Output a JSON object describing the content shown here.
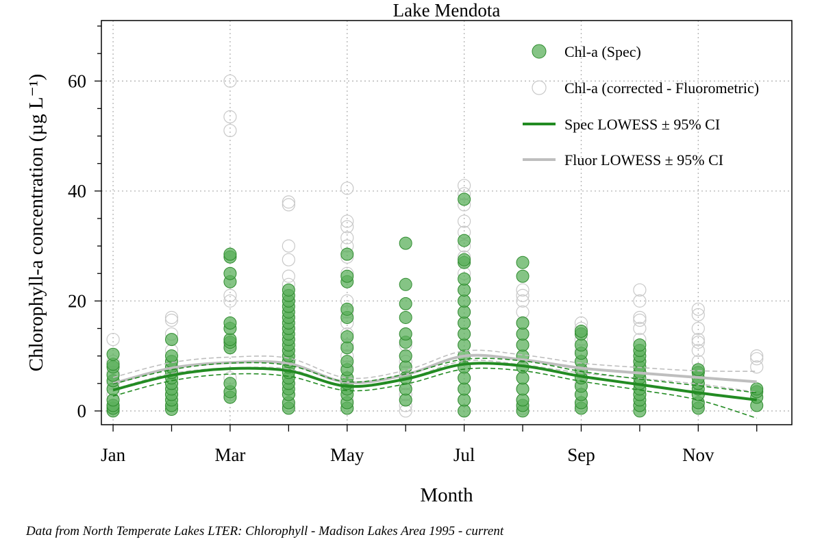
{
  "chart_data": {
    "type": "scatter",
    "title": "Lake Mendota",
    "xlabel": "Month",
    "ylabel": "Chlorophyll-a concentration (µg L⁻¹)",
    "caption": "Data from North Temperate Lakes LTER: Chlorophyll - Madison Lakes Area 1995 - current",
    "xlim": [
      0.8,
      12.6
    ],
    "ylim": [
      -2.5,
      71
    ],
    "x_ticks": [
      1,
      2,
      3,
      4,
      5,
      6,
      7,
      8,
      9,
      10,
      11,
      12
    ],
    "x_tick_labels": [
      {
        "x": 1,
        "label": "Jan"
      },
      {
        "x": 3,
        "label": "Mar"
      },
      {
        "x": 5,
        "label": "May"
      },
      {
        "x": 7,
        "label": "Jul"
      },
      {
        "x": 9,
        "label": "Sep"
      },
      {
        "x": 11,
        "label": "Nov"
      }
    ],
    "y_ticks": [
      0,
      20,
      40,
      60
    ],
    "grid": true,
    "legend_position": "top-right",
    "colors": {
      "spec_fill": "#5cb05c",
      "spec_stroke": "#2e8b2e",
      "spec_line": "#228b22",
      "fluor_stroke": "#c8c8c8",
      "fluor_line": "#bebebe"
    },
    "legend": [
      {
        "label": "Chl-a (Spec)",
        "kind": "spec-point"
      },
      {
        "label": "Chl-a (corrected - Fluorometric)",
        "kind": "fluor-point"
      },
      {
        "label": "Spec LOWESS ± 95% CI",
        "kind": "spec-line"
      },
      {
        "label": "Fluor LOWESS ± 95% CI",
        "kind": "fluor-line"
      }
    ],
    "series": [
      {
        "name": "Chl-a (Spec)",
        "points_by_month": [
          {
            "month": 1,
            "values": [
              0,
              0.5,
              1,
              2,
              4,
              5.5,
              6.5,
              8,
              8.5,
              10.3
            ]
          },
          {
            "month": 2,
            "values": [
              0.3,
              1,
              2,
              3,
              4,
              5,
              6,
              7,
              8,
              9,
              10,
              13
            ]
          },
          {
            "month": 3,
            "values": [
              2.5,
              3.5,
              5,
              11.5,
              12.5,
              13,
              15,
              16,
              23.5,
              25,
              28,
              28.5
            ]
          },
          {
            "month": 4,
            "values": [
              0.5,
              1.5,
              3,
              4,
              5,
              6,
              7,
              8,
              9,
              10,
              11,
              12,
              13,
              14,
              15,
              16,
              17,
              18,
              19,
              20,
              21,
              22
            ]
          },
          {
            "month": 5,
            "values": [
              0.5,
              1.5,
              3,
              4,
              5,
              6,
              7.5,
              9,
              11.5,
              13.5,
              17,
              18.5,
              23.5,
              24.5,
              28.5
            ]
          },
          {
            "month": 6,
            "values": [
              2,
              4,
              6,
              8,
              10,
              12.5,
              14,
              17,
              19.5,
              23,
              30.5
            ]
          },
          {
            "month": 7,
            "values": [
              0,
              2,
              4,
              6,
              8,
              10,
              12,
              14,
              16,
              18,
              20,
              22,
              24,
              27,
              27.5,
              31,
              38.5
            ]
          },
          {
            "month": 8,
            "values": [
              0,
              1,
              2,
              4,
              6,
              8,
              10,
              12,
              14,
              16,
              24.5,
              27
            ]
          },
          {
            "month": 9,
            "values": [
              0.5,
              1.5,
              3,
              4.5,
              6,
              7.5,
              9,
              10.5,
              12,
              14,
              14.5
            ]
          },
          {
            "month": 10,
            "values": [
              0,
              1,
              2,
              3,
              4,
              5,
              6,
              7,
              8,
              9,
              10,
              11,
              12
            ]
          },
          {
            "month": 11,
            "values": [
              0.5,
              1.5,
              3,
              4,
              5,
              6,
              7,
              7.5
            ]
          },
          {
            "month": 12,
            "values": [
              1,
              2.5,
              3.5,
              4
            ]
          }
        ]
      },
      {
        "name": "Chl-a (corrected - Fluorometric)",
        "points_by_month": [
          {
            "month": 1,
            "values": [
              1,
              3,
              5,
              7,
              9,
              13
            ]
          },
          {
            "month": 2,
            "values": [
              1,
              3,
              5,
              7,
              9,
              11,
              14,
              16.5,
              17
            ]
          },
          {
            "month": 3,
            "values": [
              3,
              6,
              12,
              20,
              21,
              51,
              53.5,
              60
            ]
          },
          {
            "month": 4,
            "values": [
              1,
              3,
              5,
              7,
              9,
              11,
              13,
              15,
              17,
              20,
              23,
              24.5,
              27.5,
              30,
              37.5,
              38
            ]
          },
          {
            "month": 5,
            "values": [
              0.5,
              2,
              4,
              6,
              8,
              10,
              12,
              14,
              16,
              18,
              20,
              25,
              28,
              30,
              31.5,
              33.5,
              34.5,
              40.5
            ]
          },
          {
            "month": 6,
            "values": [
              0,
              1,
              2,
              3,
              4,
              5,
              6,
              7,
              8,
              9,
              10,
              12,
              14
            ]
          },
          {
            "month": 7,
            "values": [
              0,
              2,
              4,
              6,
              8,
              10,
              12,
              14,
              16,
              18,
              20,
              22,
              25,
              28,
              30,
              32.5,
              34.5,
              37.5,
              39.5,
              41
            ]
          },
          {
            "month": 8,
            "values": [
              0.5,
              2,
              4,
              6,
              8,
              10,
              12,
              14,
              16,
              18,
              20,
              21,
              22
            ]
          },
          {
            "month": 9,
            "values": [
              1,
              3,
              5,
              7,
              9,
              11,
              13,
              15,
              16
            ]
          },
          {
            "month": 10,
            "values": [
              1,
              3,
              5,
              7,
              9,
              11,
              13,
              15,
              16.5,
              17,
              20,
              22
            ]
          },
          {
            "month": 11,
            "values": [
              1,
              3,
              5,
              7,
              9,
              11,
              12.5,
              13,
              15,
              17.5,
              18.5
            ]
          },
          {
            "month": 12,
            "values": [
              8,
              9.5,
              10
            ]
          }
        ]
      },
      {
        "name": "Spec LOWESS ± 95% CI",
        "x": [
          1,
          2,
          3,
          4,
          5,
          6,
          7,
          8,
          9,
          10,
          11,
          12
        ],
        "fit": [
          3.8,
          6.5,
          7.7,
          7.3,
          4.5,
          5.8,
          8.5,
          8.2,
          6.3,
          4.8,
          3.3,
          2.0
        ],
        "lower": [
          2.7,
          5.5,
          6.7,
          6.3,
          3.7,
          4.9,
          7.6,
          7.3,
          5.4,
          3.8,
          2.0,
          -1.3
        ],
        "upper": [
          4.9,
          7.5,
          8.7,
          8.3,
          5.3,
          6.7,
          9.4,
          9.1,
          7.2,
          5.8,
          4.6,
          3.3
        ]
      },
      {
        "name": "Fluor LOWESS ± 95% CI",
        "x": [
          1,
          2,
          3,
          4,
          5,
          6,
          7,
          8,
          9,
          10,
          11,
          12
        ],
        "fit": [
          5.0,
          7.8,
          8.8,
          8.6,
          5.2,
          6.6,
          10.0,
          9.3,
          7.8,
          6.9,
          6.1,
          5.3
        ],
        "lower": [
          3.9,
          6.8,
          7.8,
          7.6,
          4.4,
          5.8,
          9.1,
          8.4,
          6.9,
          5.9,
          4.9,
          3.4
        ],
        "upper": [
          6.1,
          8.8,
          9.8,
          9.6,
          6.0,
          7.4,
          10.9,
          10.2,
          8.7,
          7.9,
          7.3,
          7.2
        ]
      }
    ]
  }
}
